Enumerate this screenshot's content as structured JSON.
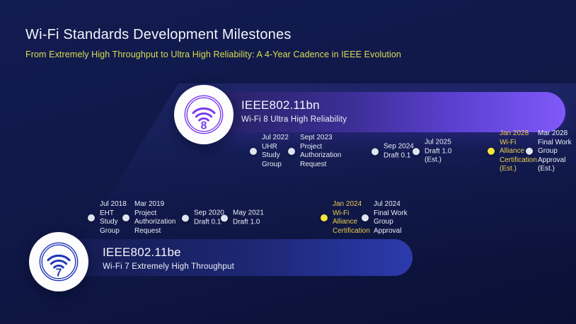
{
  "header": {
    "title": "Wi-Fi Standards Development Milestones",
    "subtitle": "From Extremely High Throughput to Ultra High Reliability: A 4-Year Cadence in IEEE Evolution"
  },
  "colors": {
    "background_navy": "#101848",
    "wifi8_bar_purple": "#8059f8",
    "wifi7_bar_blue": "#2c3aad",
    "subtitle_yellow": "#d9de52",
    "highlight_gold_text": "#e9cd4e",
    "highlight_gold_dot": "#f4e63c",
    "milestone_dot_white": "#dfe4f0",
    "wifi8_icon_purple": "#7a3af0",
    "wifi7_icon_blue": "#1e35b5"
  },
  "wifi8_track": {
    "badge_generation": "8",
    "standard": "IEEE802.11bn",
    "description": "Wi-Fi 8  Ultra High Reliability",
    "milestones": [
      {
        "date": "Jul 2022",
        "lines": [
          "UHR",
          "Study",
          "Group"
        ],
        "highlight": false
      },
      {
        "date": "Sept 2023",
        "lines": [
          "Project",
          "Authorization",
          "Request"
        ],
        "highlight": false
      },
      {
        "date": "Sep 2024",
        "lines": [
          "Draft 0.1"
        ],
        "highlight": false
      },
      {
        "date": "Jul 2025",
        "lines": [
          "Draft 1.0",
          "(Est.)"
        ],
        "highlight": false
      },
      {
        "date": "Jan 2028",
        "lines": [
          "Wi-Fi",
          "Alliance",
          "Certification",
          "(Est.)"
        ],
        "highlight": true
      },
      {
        "date": "Mar 2028",
        "lines": [
          "Final Work",
          "Group",
          "Approval",
          "(Est.)"
        ],
        "highlight": false
      }
    ]
  },
  "wifi7_track": {
    "badge_generation": "7",
    "standard": "IEEE802.11be",
    "description": "Wi-Fi 7 Extremely High Throughput",
    "milestones": [
      {
        "date": "Jul 2018",
        "lines": [
          "EHT",
          "Study",
          "Group"
        ],
        "highlight": false
      },
      {
        "date": "Mar 2019",
        "lines": [
          "Project",
          "Authorization",
          "Request"
        ],
        "highlight": false
      },
      {
        "date": "Sep 2020",
        "lines": [
          "Draft 0.1"
        ],
        "highlight": false
      },
      {
        "date": "May 2021",
        "lines": [
          "Draft 1.0"
        ],
        "highlight": false
      },
      {
        "date": "Jan 2024",
        "lines": [
          "Wi-Fi",
          "Alliance",
          "Certification"
        ],
        "highlight": true
      },
      {
        "date": "Jul 2024",
        "lines": [
          "Final Work",
          "Group",
          "Approval"
        ],
        "highlight": false
      }
    ]
  }
}
